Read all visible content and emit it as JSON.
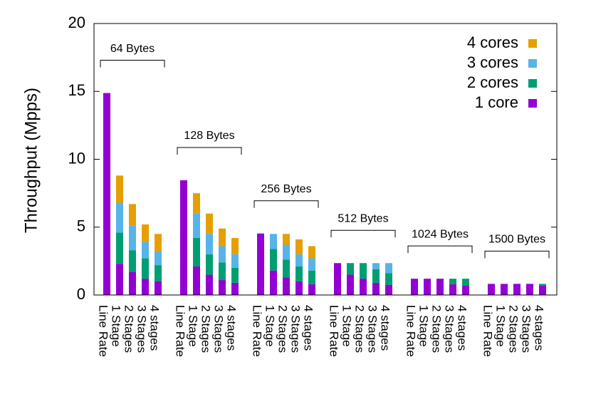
{
  "chart_data": {
    "type": "bar",
    "stacked": true,
    "ylabel": "Throughput (Mpps)",
    "groups": [
      "64 Bytes",
      "128 Bytes",
      "256 Bytes",
      "512 Bytes",
      "1024 Bytes",
      "1500 Bytes"
    ],
    "categories": [
      "Line Rate",
      "1 Stage",
      "2 Stages",
      "3 Stages",
      "4 stages",
      null,
      "Line Rate",
      "1 Stage",
      "2 Stages",
      "3 Stages",
      "4 stages",
      null,
      "Line Rate",
      "1 Stage",
      "2 Stages",
      "3 Stages",
      "4 stages",
      null,
      "Line Rate",
      "1 Stage",
      "2 Stages",
      "3 Stages",
      "4 stages",
      null,
      "Line Rate",
      "1 Stage",
      "2 Stages",
      "3 Stages",
      "4 stages",
      null,
      "Line Rate",
      "1 Stage",
      "2 Stages",
      "3 Stages",
      "4 stages"
    ],
    "series": [
      {
        "name": "1 core",
        "color": "#9400d3",
        "values": [
          14.88,
          2.3,
          1.7,
          1.2,
          1.0,
          null,
          8.45,
          2.1,
          1.5,
          1.1,
          0.9,
          null,
          4.53,
          1.8,
          1.3,
          1.0,
          0.8,
          null,
          2.35,
          1.5,
          1.2,
          0.9,
          0.75,
          null,
          1.2,
          1.2,
          1.2,
          0.8,
          0.7,
          null,
          0.82,
          0.82,
          0.82,
          0.82,
          0.7
        ]
      },
      {
        "name": "2 cores",
        "color": "#009e73",
        "values": [
          null,
          2.3,
          1.6,
          1.5,
          1.2,
          null,
          null,
          2.1,
          1.5,
          1.3,
          1.1,
          null,
          null,
          1.6,
          1.3,
          1.1,
          1.0,
          null,
          null,
          0.85,
          1.15,
          1.0,
          0.85,
          null,
          null,
          null,
          null,
          0.4,
          0.5,
          null,
          null,
          null,
          null,
          null,
          0.12
        ]
      },
      {
        "name": "3 cores",
        "color": "#56b4e9",
        "values": [
          null,
          2.2,
          1.8,
          1.2,
          1.0,
          null,
          null,
          1.8,
          1.5,
          1.2,
          1.0,
          null,
          null,
          1.1,
          1.1,
          0.9,
          0.9,
          null,
          null,
          null,
          null,
          0.45,
          0.75,
          null,
          null,
          null,
          null,
          null,
          null,
          null,
          null,
          null,
          null,
          null,
          null
        ]
      },
      {
        "name": "4 cores",
        "color": "#e69f00",
        "values": [
          null,
          2.0,
          1.6,
          1.3,
          1.3,
          null,
          null,
          1.5,
          1.5,
          1.3,
          1.2,
          null,
          null,
          null,
          0.8,
          1.1,
          0.9,
          null,
          null,
          null,
          null,
          null,
          null,
          null,
          null,
          null,
          null,
          null,
          null,
          null,
          null,
          null,
          null,
          null,
          null
        ]
      }
    ],
    "ylim": [
      0,
      20
    ],
    "yticks": [
      0,
      5,
      10,
      15,
      20
    ],
    "legend": "top-right"
  }
}
